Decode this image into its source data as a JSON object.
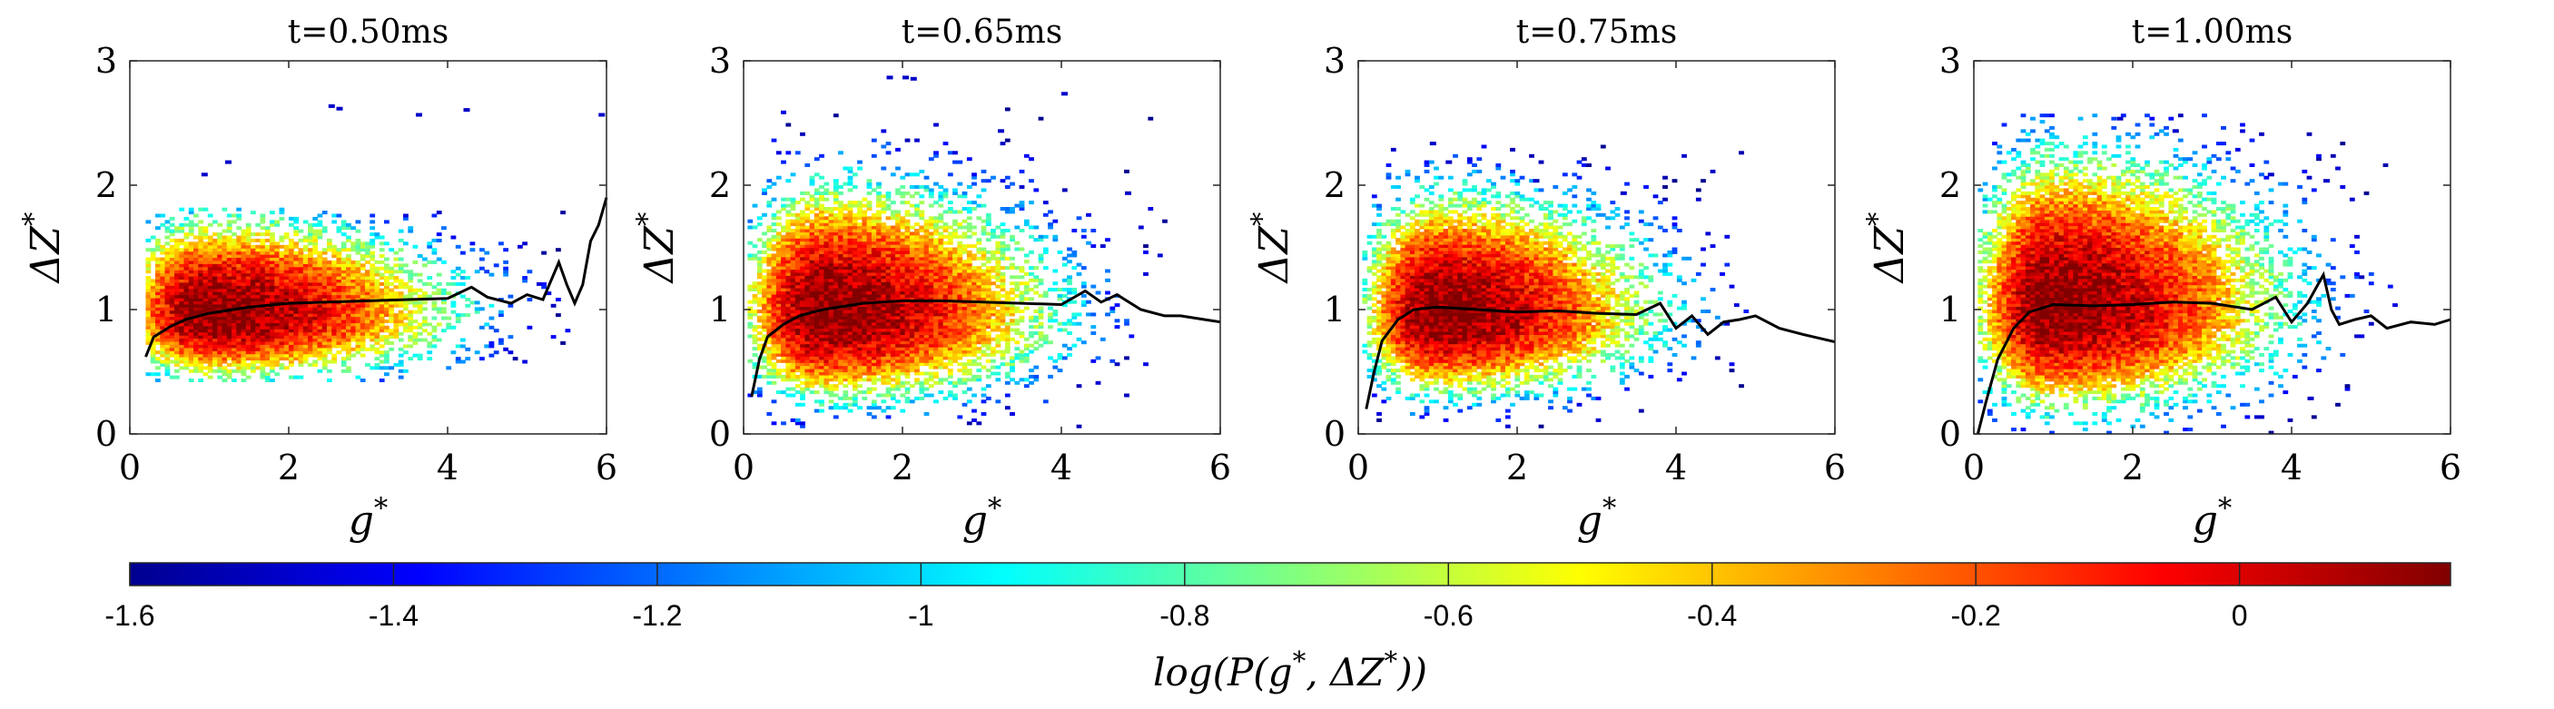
{
  "colormap": [
    "#00008f",
    "#0000ff",
    "#0080ff",
    "#00ffff",
    "#80ff80",
    "#ffff00",
    "#ff8000",
    "#ff0000",
    "#800000"
  ],
  "chart_data": [
    {
      "type": "heatmap",
      "title": "t=0.50ms",
      "xlabel": "g*",
      "ylabel": "ΔZ*",
      "xlim": [
        0,
        6
      ],
      "ylim": [
        0,
        3
      ],
      "xticks": [
        "0",
        "2",
        "4",
        "6"
      ],
      "yticks": [
        "0",
        "1",
        "2",
        "3"
      ],
      "density": {
        "center": [
          0.95,
          0.95
        ],
        "spread": [
          0.9,
          0.24
        ],
        "x_extent": [
          0.2,
          5.5
        ],
        "y_extent": [
          0.42,
          1.8
        ]
      },
      "mean_curve": {
        "x": [
          0.2,
          0.3,
          0.5,
          0.7,
          1.0,
          1.5,
          2.0,
          2.5,
          3.0,
          3.5,
          4.0,
          4.3,
          4.5,
          4.8,
          5.0,
          5.2,
          5.4,
          5.5,
          5.6,
          5.7,
          5.8,
          5.9,
          6.0
        ],
        "y": [
          0.62,
          0.78,
          0.86,
          0.92,
          0.97,
          1.02,
          1.05,
          1.06,
          1.07,
          1.08,
          1.09,
          1.18,
          1.1,
          1.05,
          1.12,
          1.08,
          1.38,
          1.2,
          1.05,
          1.2,
          1.55,
          1.68,
          1.9
        ]
      },
      "outliers": [
        [
          2.5,
          2.65
        ],
        [
          2.6,
          2.63
        ],
        [
          3.6,
          2.58
        ],
        [
          4.2,
          2.62
        ],
        [
          5.9,
          2.58
        ],
        [
          1.2,
          2.2
        ],
        [
          0.9,
          2.1
        ]
      ]
    },
    {
      "type": "heatmap",
      "title": "t=0.65ms",
      "xlabel": "g*",
      "ylabel": "ΔZ*",
      "xlim": [
        0,
        6
      ],
      "ylim": [
        0,
        3
      ],
      "xticks": [
        "0",
        "2",
        "4",
        "6"
      ],
      "yticks": [
        "0",
        "1",
        "2",
        "3"
      ],
      "density": {
        "center": [
          0.95,
          0.95
        ],
        "spread": [
          0.85,
          0.32
        ],
        "x_extent": [
          0.05,
          5.5
        ],
        "y_extent": [
          0.05,
          2.6
        ]
      },
      "mean_curve": {
        "x": [
          0.1,
          0.2,
          0.3,
          0.5,
          0.7,
          1.0,
          1.5,
          2.0,
          2.5,
          3.0,
          3.5,
          4.0,
          4.3,
          4.5,
          4.7,
          5.0,
          5.3,
          5.5,
          5.8,
          6.0
        ],
        "y": [
          0.3,
          0.6,
          0.78,
          0.88,
          0.95,
          1.0,
          1.05,
          1.07,
          1.07,
          1.06,
          1.05,
          1.04,
          1.15,
          1.06,
          1.12,
          1.0,
          0.95,
          0.95,
          0.92,
          0.9
        ]
      },
      "outliers": [
        [
          1.8,
          2.88
        ],
        [
          2.0,
          2.88
        ],
        [
          2.1,
          2.87
        ],
        [
          4.0,
          2.75
        ],
        [
          3.2,
          2.45
        ],
        [
          4.8,
          1.95
        ]
      ]
    },
    {
      "type": "heatmap",
      "title": "t=0.75ms",
      "xlabel": "g*",
      "ylabel": "ΔZ*",
      "xlim": [
        0,
        6
      ],
      "ylim": [
        0,
        3
      ],
      "xticks": [
        "0",
        "2",
        "4",
        "6"
      ],
      "yticks": [
        "0",
        "1",
        "2",
        "3"
      ],
      "density": {
        "center": [
          0.95,
          0.95
        ],
        "spread": [
          0.8,
          0.3
        ],
        "x_extent": [
          0.05,
          5.0
        ],
        "y_extent": [
          0.05,
          2.3
        ]
      },
      "mean_curve": {
        "x": [
          0.1,
          0.2,
          0.3,
          0.5,
          0.7,
          1.0,
          1.5,
          2.0,
          2.5,
          3.0,
          3.5,
          3.8,
          4.0,
          4.2,
          4.4,
          4.6,
          4.8,
          5.0,
          5.3,
          5.6,
          6.0
        ],
        "y": [
          0.2,
          0.5,
          0.75,
          0.92,
          1.0,
          1.02,
          1.0,
          0.98,
          0.99,
          0.97,
          0.96,
          1.05,
          0.85,
          0.95,
          0.8,
          0.9,
          0.92,
          0.95,
          0.85,
          0.8,
          0.74
        ]
      },
      "outliers": [
        [
          0.9,
          2.35
        ],
        [
          1.1,
          2.2
        ],
        [
          2.2,
          2.05
        ],
        [
          3.3,
          1.95
        ]
      ]
    },
    {
      "type": "heatmap",
      "title": "t=1.00ms",
      "xlabel": "g*",
      "ylabel": "ΔZ*",
      "xlim": [
        0,
        6
      ],
      "ylim": [
        0,
        3
      ],
      "xticks": [
        "0",
        "2",
        "4",
        "6"
      ],
      "yticks": [
        "0",
        "1",
        "2",
        "3"
      ],
      "density": {
        "center": [
          0.95,
          1.0
        ],
        "spread": [
          0.85,
          0.38
        ],
        "x_extent": [
          0.05,
          5.3
        ],
        "y_extent": [
          0.0,
          2.55
        ]
      },
      "mean_curve": {
        "x": [
          0.05,
          0.15,
          0.3,
          0.5,
          0.7,
          1.0,
          1.5,
          2.0,
          2.5,
          3.0,
          3.5,
          3.8,
          4.0,
          4.2,
          4.4,
          4.5,
          4.6,
          4.8,
          5.0,
          5.2,
          5.5,
          5.8,
          6.0
        ],
        "y": [
          0.0,
          0.25,
          0.6,
          0.85,
          0.98,
          1.04,
          1.03,
          1.04,
          1.06,
          1.05,
          1.0,
          1.1,
          0.9,
          1.05,
          1.28,
          1.0,
          0.88,
          0.92,
          0.95,
          0.85,
          0.9,
          0.88,
          0.92
        ]
      },
      "outliers": [
        [
          1.8,
          2.55
        ],
        [
          2.5,
          2.45
        ],
        [
          3.7,
          2.1
        ],
        [
          4.4,
          2.05
        ],
        [
          4.2,
          0.3
        ]
      ]
    }
  ],
  "colorbar": {
    "min": -1.6,
    "max": 0.16,
    "ticks": [
      {
        "value": -1.6,
        "label": "-1.6"
      },
      {
        "value": -1.4,
        "label": "-1.4"
      },
      {
        "value": -1.2,
        "label": "-1.2"
      },
      {
        "value": -1.0,
        "label": "-1"
      },
      {
        "value": -0.8,
        "label": "-0.8"
      },
      {
        "value": -0.6,
        "label": "-0.6"
      },
      {
        "value": -0.4,
        "label": "-0.4"
      },
      {
        "value": -0.2,
        "label": "-0.2"
      },
      {
        "value": 0.0,
        "label": "0"
      }
    ],
    "label": "log(P(g*, ΔZ*))"
  }
}
